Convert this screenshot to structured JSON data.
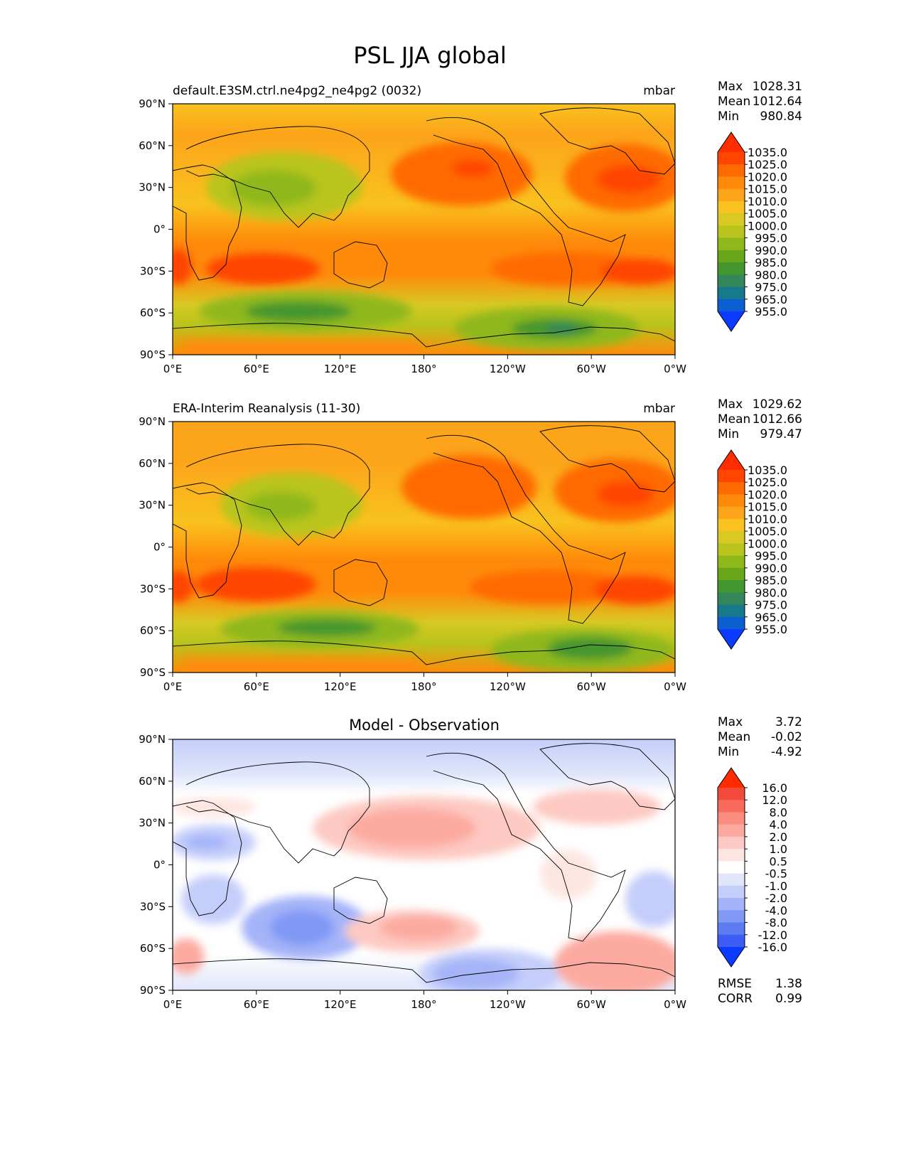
{
  "figure": {
    "title": "PSL JJA global"
  },
  "chart_data": [
    {
      "type": "heatmap",
      "title_left": "default.E3SM.ctrl.ne4pg2_ne4pg2 (0032)",
      "title_center": "",
      "units": "mbar",
      "stats": {
        "max_label": "Max",
        "max": "1028.31",
        "mean_label": "Mean",
        "mean": "1012.64",
        "min_label": "Min",
        "min": "980.84"
      },
      "xticks": [
        "0°E",
        "60°E",
        "120°E",
        "180°",
        "120°W",
        "60°W",
        "0°W"
      ],
      "yticks": [
        "90°N",
        "60°N",
        "30°N",
        "0°",
        "30°S",
        "60°S",
        "90°S"
      ],
      "xlim": [
        0,
        360
      ],
      "ylim": [
        -90,
        90
      ],
      "colorbar": {
        "labels": [
          "1035.0",
          "1025.0",
          "1020.0",
          "1015.0",
          "1010.0",
          "1005.0",
          "1000.0",
          "995.0",
          "990.0",
          "985.0",
          "980.0",
          "975.0",
          "965.0",
          "955.0"
        ],
        "colors": [
          "#ff2d00",
          "#ff4500",
          "#ff6a00",
          "#ff8a0a",
          "#fca41a",
          "#f9c21e",
          "#d8c923",
          "#b9c41c",
          "#8fb81b",
          "#6aa619",
          "#44962f",
          "#33875a",
          "#167a8c",
          "#0d5fd1",
          "#0b3bff"
        ]
      },
      "footer_stats": null
    },
    {
      "type": "heatmap",
      "title_left": "ERA-Interim Reanalysis (11-30)",
      "title_center": "",
      "units": "mbar",
      "stats": {
        "max_label": "Max",
        "max": "1029.62",
        "mean_label": "Mean",
        "mean": "1012.66",
        "min_label": "Min",
        "min": "979.47"
      },
      "xticks": [
        "0°E",
        "60°E",
        "120°E",
        "180°",
        "120°W",
        "60°W",
        "0°W"
      ],
      "yticks": [
        "90°N",
        "60°N",
        "30°N",
        "0°",
        "30°S",
        "60°S",
        "90°S"
      ],
      "xlim": [
        0,
        360
      ],
      "ylim": [
        -90,
        90
      ],
      "colorbar": {
        "labels": [
          "1035.0",
          "1025.0",
          "1020.0",
          "1015.0",
          "1010.0",
          "1005.0",
          "1000.0",
          "995.0",
          "990.0",
          "985.0",
          "980.0",
          "975.0",
          "965.0",
          "955.0"
        ],
        "colors": [
          "#ff2d00",
          "#ff4500",
          "#ff6a00",
          "#ff8a0a",
          "#fca41a",
          "#f9c21e",
          "#d8c923",
          "#b9c41c",
          "#8fb81b",
          "#6aa619",
          "#44962f",
          "#33875a",
          "#167a8c",
          "#0d5fd1",
          "#0b3bff"
        ]
      },
      "footer_stats": null
    },
    {
      "type": "heatmap",
      "title_left": "",
      "title_center": "Model - Observation",
      "units": "",
      "stats": {
        "max_label": "Max",
        "max": "3.72",
        "mean_label": "Mean",
        "mean": "-0.02",
        "min_label": "Min",
        "min": "-4.92"
      },
      "xticks": [
        "0°E",
        "60°E",
        "120°E",
        "180°",
        "120°W",
        "60°W",
        "0°W"
      ],
      "yticks": [
        "90°N",
        "60°N",
        "30°N",
        "0°",
        "30°S",
        "60°S",
        "90°S"
      ],
      "xlim": [
        0,
        360
      ],
      "ylim": [
        -90,
        90
      ],
      "colorbar": {
        "labels": [
          "16.0",
          "12.0",
          "8.0",
          "4.0",
          "2.0",
          "1.0",
          "0.5",
          "-0.5",
          "-1.0",
          "-2.0",
          "-4.0",
          "-8.0",
          "-12.0",
          "-16.0"
        ],
        "colors": [
          "#ff2b00",
          "#f24a3a",
          "#f86a5c",
          "#fb8d80",
          "#fcaaa0",
          "#fdc9c2",
          "#fde6e2",
          "#ffffff",
          "#e1e6fb",
          "#c4cefa",
          "#a5b4f8",
          "#8199f5",
          "#5d7cf2",
          "#3d5cf6",
          "#0b3bff"
        ]
      },
      "footer_stats": {
        "rmse_label": "RMSE",
        "rmse": "1.38",
        "corr_label": "CORR",
        "corr": "0.99"
      }
    }
  ]
}
